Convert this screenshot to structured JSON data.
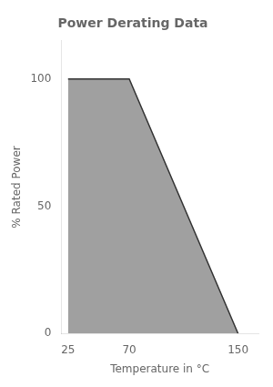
{
  "chart_data": {
    "type": "area",
    "title": "Power Derating Data",
    "x_label": "Temperature in °C",
    "y_label": "% Rated Power",
    "x": [
      25,
      70,
      150
    ],
    "values": [
      100,
      100,
      0
    ],
    "color": "#888888",
    "xlim": [
      20,
      165
    ],
    "ylim": [
      0,
      115
    ],
    "xticks": [
      25,
      70,
      150
    ],
    "yticks": [
      0,
      50,
      100
    ],
    "grid": false
  }
}
